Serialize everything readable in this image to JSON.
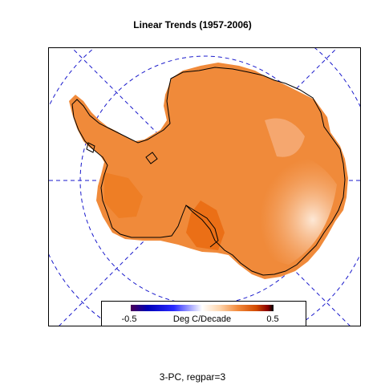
{
  "map": {
    "title": "Linear Trends (1957-2006)",
    "caption": "3-PC, regpar=3",
    "colors": {
      "fill": "#f08a3a",
      "fill_light": "#fbd8b8",
      "fill_dark": "#ea6a10",
      "coast": "#000000",
      "graticule": "#1a1acc",
      "frame": "#000000"
    }
  },
  "legend": {
    "unit_label": "Deg C/Decade",
    "min_label": "-0.5",
    "max_label": "0.5",
    "range": [
      -0.5,
      0.5
    ],
    "colors": [
      "#4b0057",
      "#0000b8",
      "#2a2aff",
      "#ffffff",
      "#ffd7b0",
      "#f28a3c",
      "#d24a00",
      "#8a0000",
      "#000000"
    ]
  }
}
